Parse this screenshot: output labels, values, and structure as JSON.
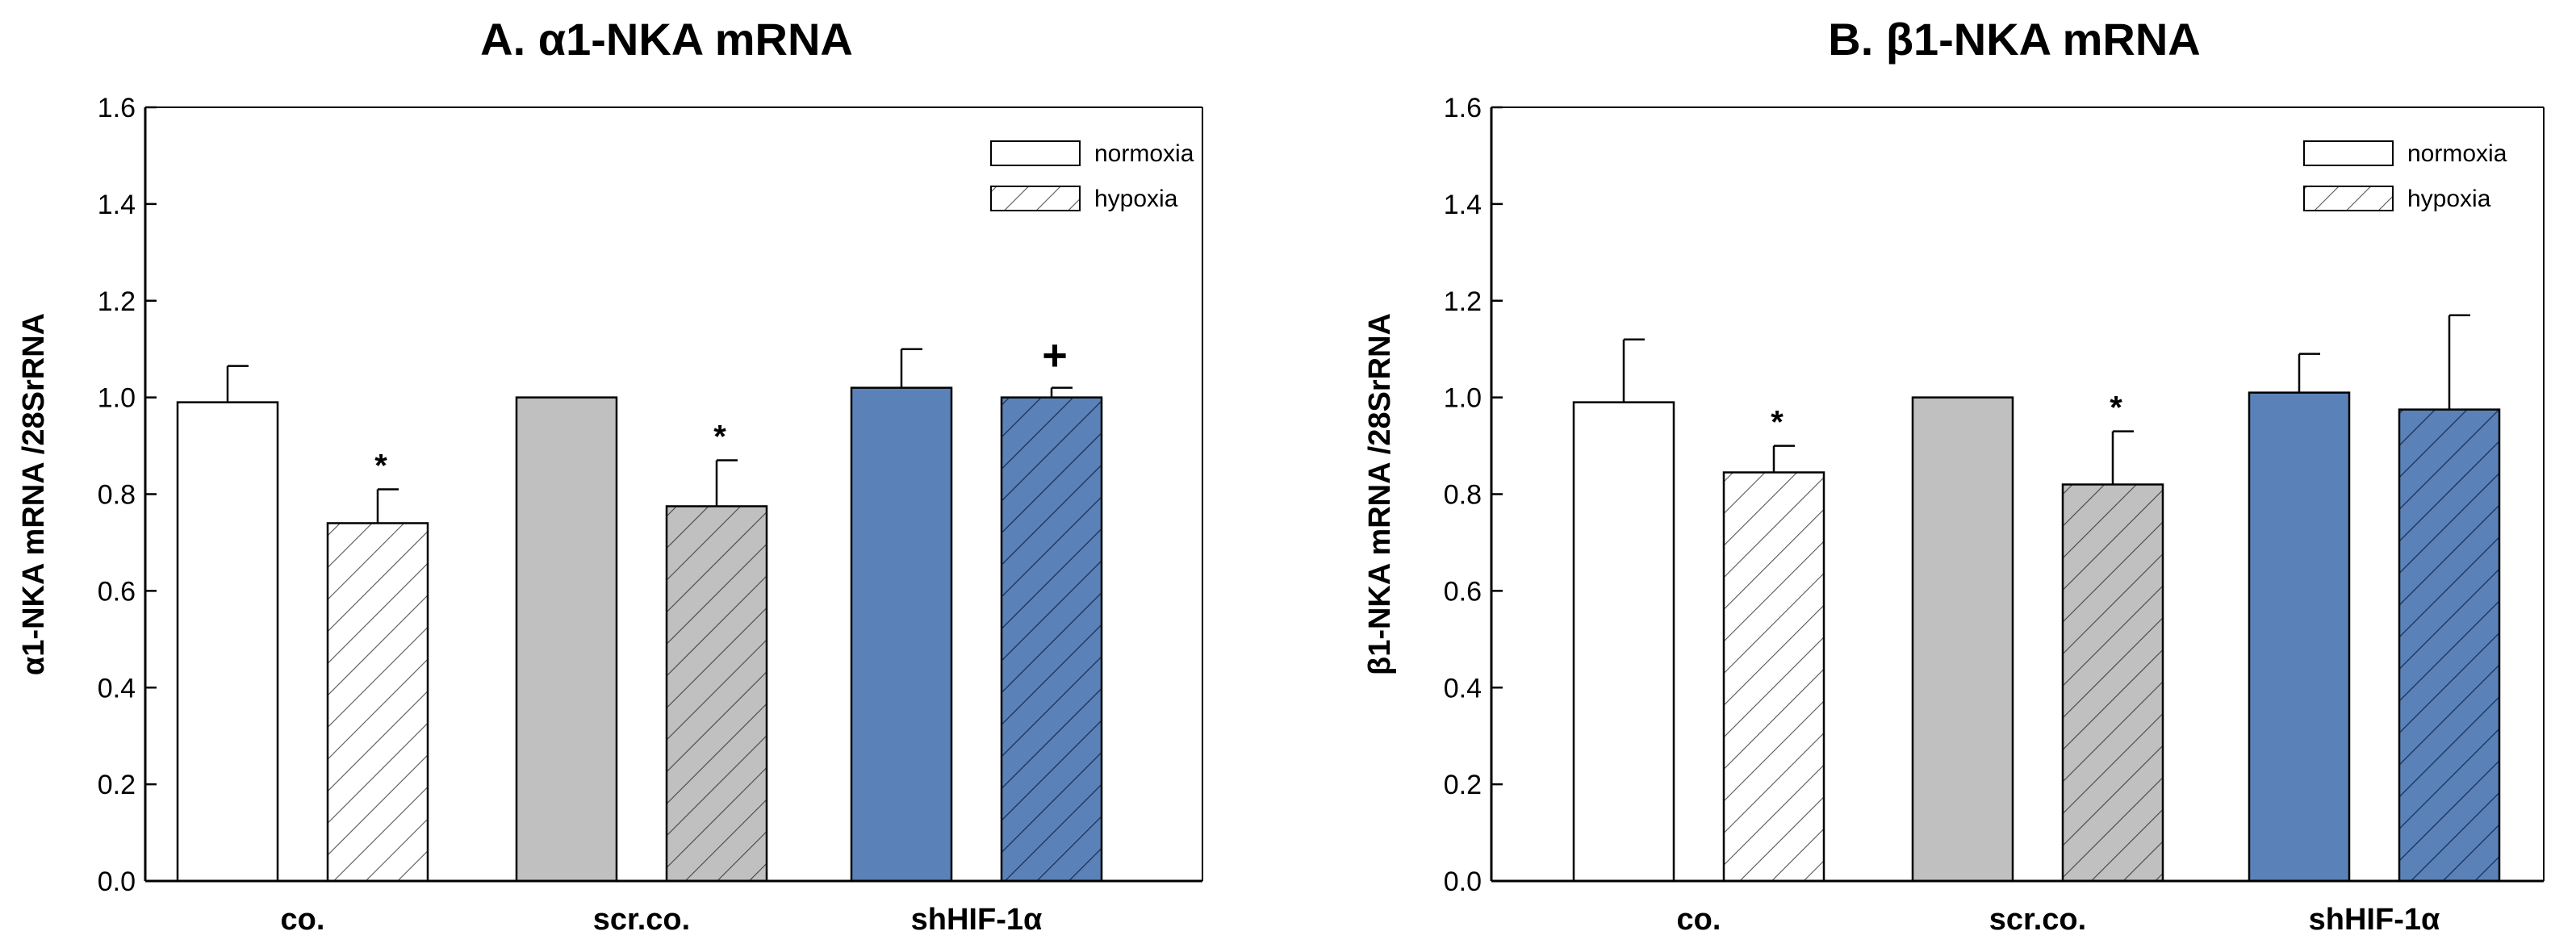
{
  "chart_data": [
    {
      "type": "bar",
      "title": "A. α1-NKA mRNA",
      "ylabel": "α1-NKA mRNA /28SrRNA",
      "xlabel": "",
      "ylim": [
        0,
        1.6
      ],
      "yticks": [
        "0.0",
        "0.2",
        "0.4",
        "0.6",
        "0.8",
        "1.0",
        "1.2",
        "1.4",
        "1.6"
      ],
      "categories": [
        "co.",
        "scr.co.",
        "shHIF-1α"
      ],
      "legend": {
        "position": "top-right",
        "entries": [
          "normoxia",
          "hypoxia"
        ]
      },
      "bar_colors": [
        "#ffffff",
        "#c0c0c0",
        "#5b82b8"
      ],
      "series": [
        {
          "name": "normoxia",
          "values": [
            0.99,
            1.0,
            1.02
          ],
          "errors": [
            0.075,
            0,
            0.08
          ],
          "annotations": [
            "",
            "",
            ""
          ]
        },
        {
          "name": "hypoxia",
          "values": [
            0.74,
            0.775,
            1.0
          ],
          "errors": [
            0.07,
            0.095,
            0.02
          ],
          "annotations": [
            "*",
            "*",
            "+"
          ]
        }
      ]
    },
    {
      "type": "bar",
      "title": "B. β1-NKA mRNA",
      "ylabel": "β1-NKA mRNA /28SrRNA",
      "xlabel": "",
      "ylim": [
        0,
        1.6
      ],
      "yticks": [
        "0.0",
        "0.2",
        "0.4",
        "0.6",
        "0.8",
        "1.0",
        "1.2",
        "1.4",
        "1.6"
      ],
      "categories": [
        "co.",
        "scr.co.",
        "shHIF-1α"
      ],
      "legend": {
        "position": "top-right",
        "entries": [
          "normoxia",
          "hypoxia"
        ]
      },
      "bar_colors": [
        "#ffffff",
        "#c0c0c0",
        "#5b82b8"
      ],
      "series": [
        {
          "name": "normoxia",
          "values": [
            0.99,
            1.0,
            1.01
          ],
          "errors": [
            0.13,
            0,
            0.08
          ],
          "annotations": [
            "",
            "",
            ""
          ]
        },
        {
          "name": "hypoxia",
          "values": [
            0.845,
            0.82,
            0.975
          ],
          "errors": [
            0.055,
            0.11,
            0.195
          ],
          "annotations": [
            "*",
            "*",
            ""
          ]
        }
      ]
    }
  ]
}
